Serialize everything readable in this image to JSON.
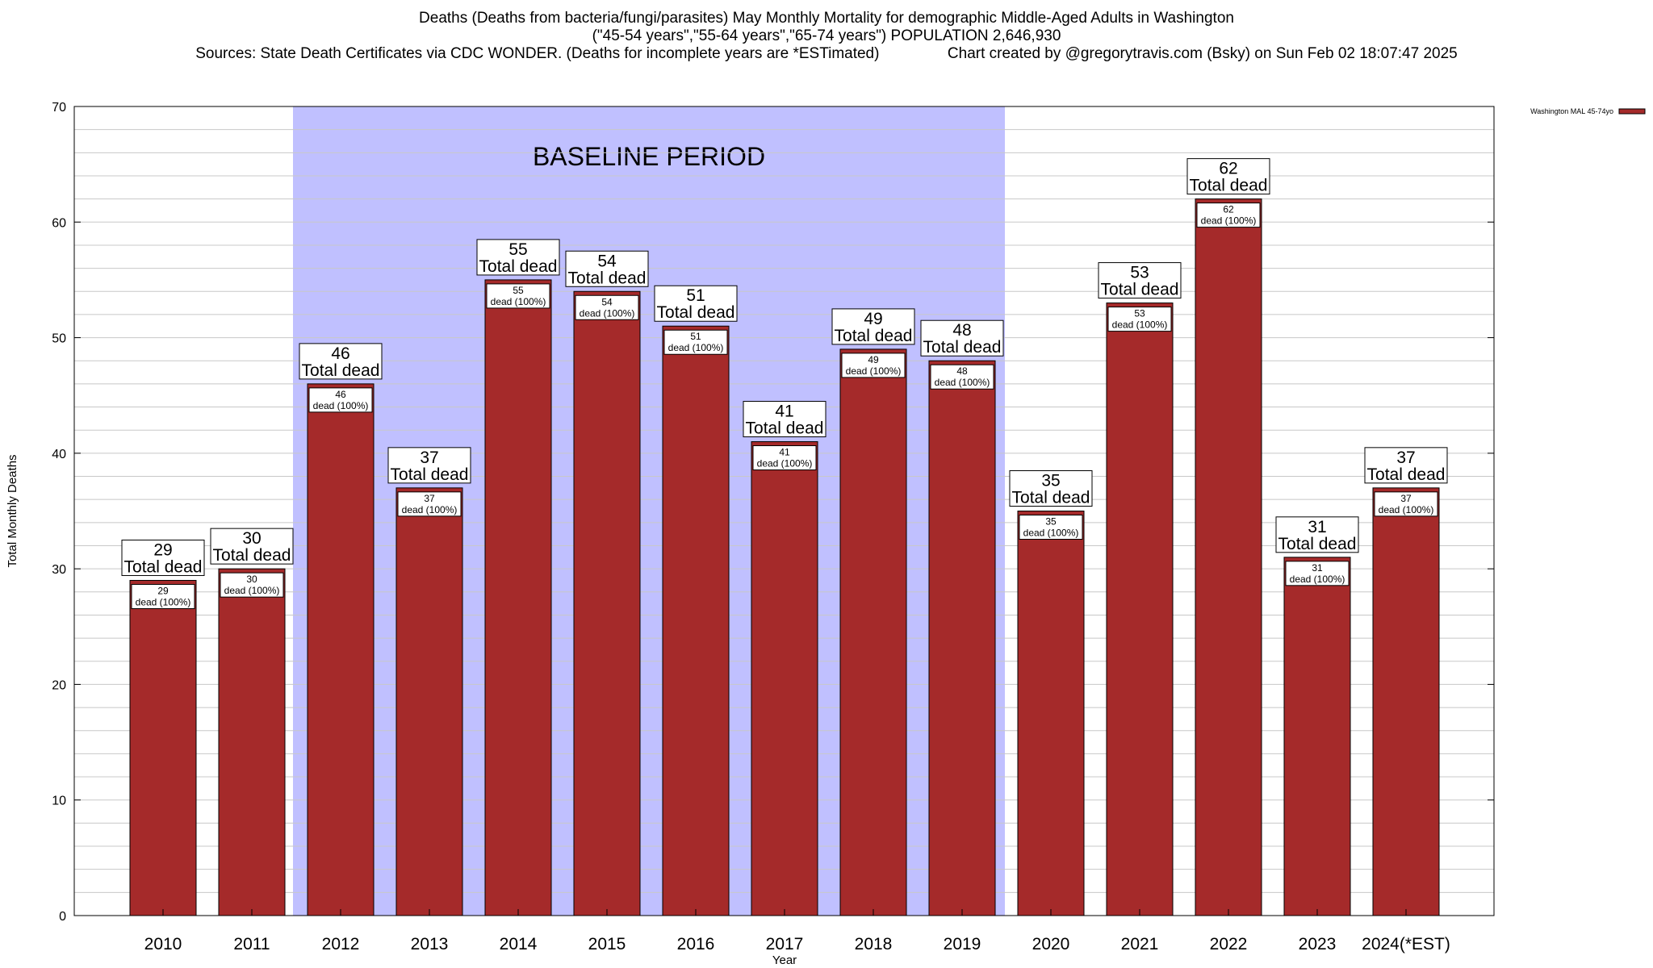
{
  "header": {
    "title_line1": "Deaths (Deaths from bacteria/fungi/parasites) May Monthly Mortality for demographic Middle-Aged Adults in Washington",
    "title_line2": "(\"45-54 years\",\"55-64 years\",\"65-74 years\") POPULATION 2,646,930",
    "title_line3": "Sources: State Death Certificates via CDC WONDER. (Deaths for incomplete years are *ESTimated)                Chart created by @gregorytravis.com (Bsky) on Sun Feb 02 18:07:47 2025"
  },
  "colors": {
    "bar": "#a52a2a",
    "baseline_band": "#c0c0ff",
    "grid": "#c8c8c8"
  },
  "chart_data": {
    "type": "bar",
    "title": "Deaths (Deaths from bacteria/fungi/parasites) May Monthly Mortality for demographic Middle-Aged Adults in Washington",
    "xlabel": "Year",
    "ylabel": "Total Monthly Deaths",
    "ylim": [
      0,
      70
    ],
    "yticks": [
      0,
      10,
      20,
      30,
      40,
      50,
      60,
      70
    ],
    "grid": true,
    "legend_position": "top-right",
    "categories": [
      "2010",
      "2011",
      "2012",
      "2013",
      "2014",
      "2015",
      "2016",
      "2017",
      "2018",
      "2019",
      "2020",
      "2021",
      "2022",
      "2023",
      "2024(*EST)"
    ],
    "series": [
      {
        "name": "Washington MAL 45-74yo",
        "values": [
          29,
          30,
          46,
          37,
          55,
          54,
          51,
          41,
          49,
          48,
          35,
          53,
          62,
          31,
          37
        ]
      }
    ],
    "top_label_suffix": "Total dead",
    "inner_label_suffix": "dead (100%)",
    "annotation": {
      "text": "BASELINE PERIOD",
      "start_category": "2012",
      "end_category": "2019"
    }
  }
}
